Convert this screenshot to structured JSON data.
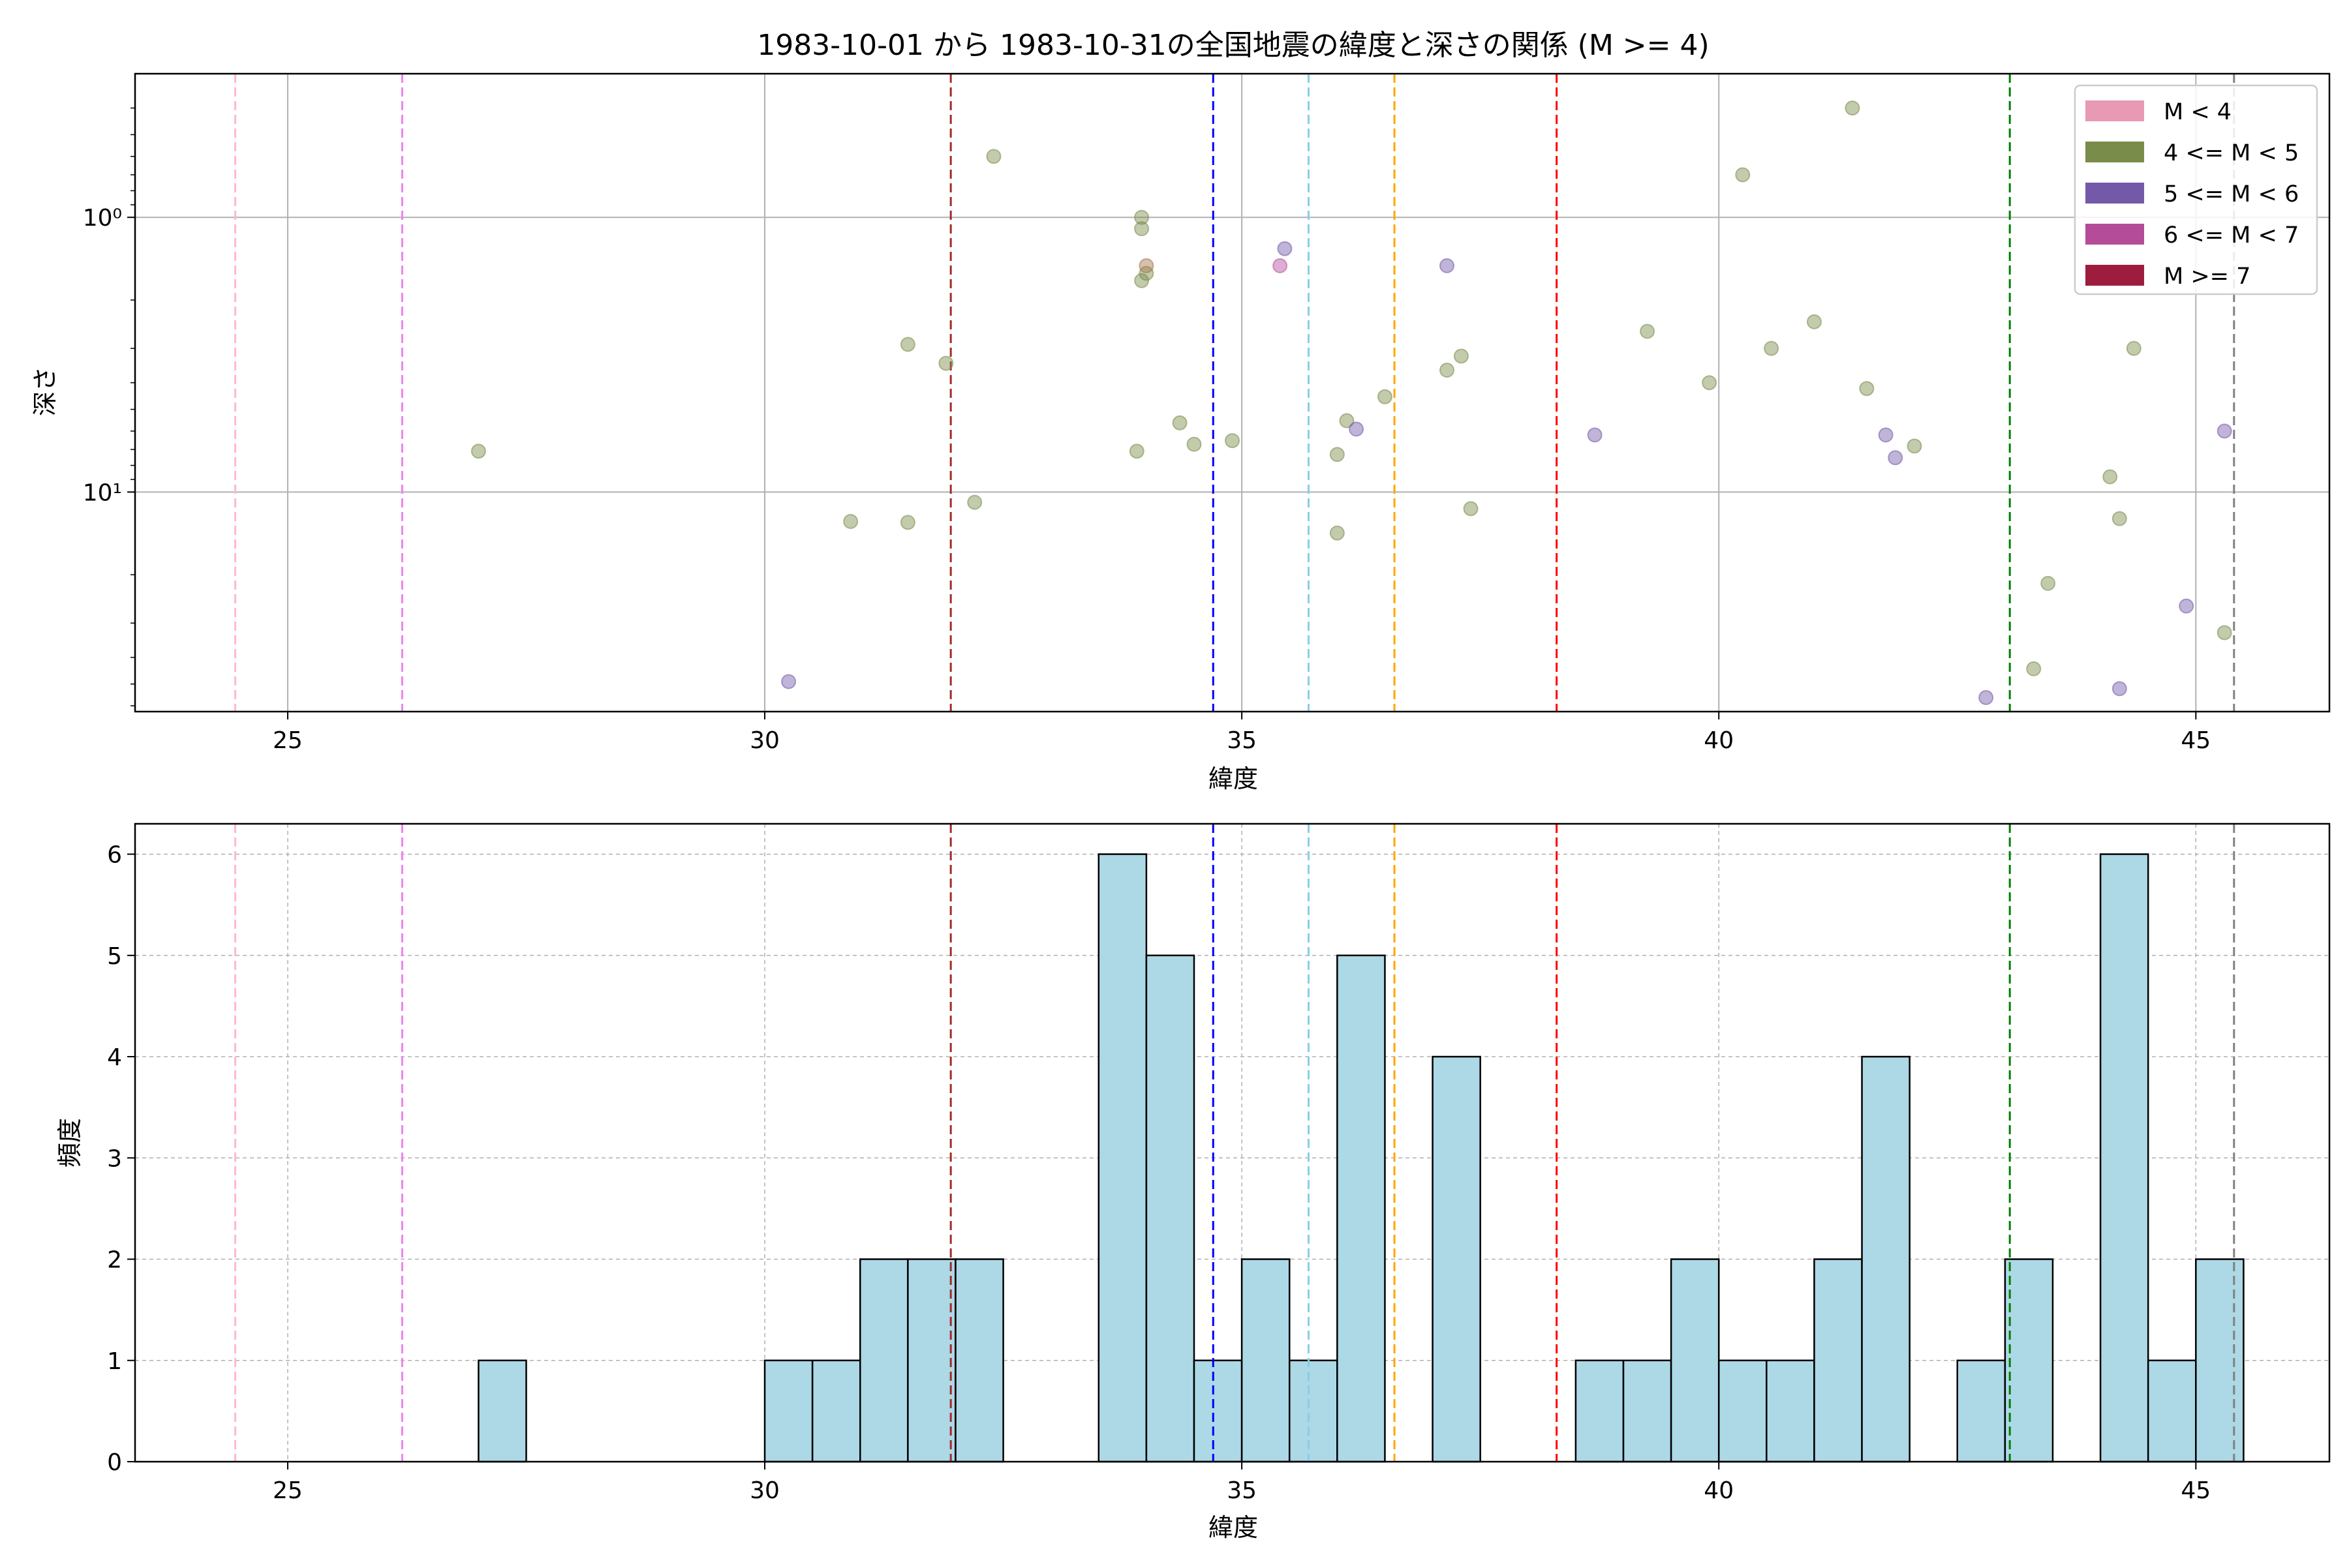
{
  "chart_data": [
    {
      "type": "scatter",
      "title": "1983-10-01 から 1983-10-31の全国地震の緯度と深さの関係 (M >= 4)",
      "xlabel": "緯度",
      "ylabel": "深さ",
      "xlim": [
        23.4,
        46.4
      ],
      "ylim": [
        63,
        0.3
      ],
      "y_scale": "log",
      "y_inverted": true,
      "grid": true,
      "xticks": [
        25,
        30,
        35,
        40,
        45
      ],
      "yticks": [
        {
          "value": 1,
          "label": "10⁰"
        },
        {
          "value": 10,
          "label": "10¹"
        }
      ],
      "legend": {
        "position": "top-right",
        "entries": [
          {
            "label": "M < 4",
            "color": "#e899b4"
          },
          {
            "label": "4 <= M < 5",
            "color": "#7a8c4a"
          },
          {
            "label": "5 <= M < 6",
            "color": "#7459a8"
          },
          {
            "label": "6 <= M < 7",
            "color": "#b44c9a"
          },
          {
            "label": "M >= 7",
            "color": "#9e1d3e"
          }
        ]
      },
      "reference_lines": [
        {
          "x": 24.45,
          "color": "#ffb6d9"
        },
        {
          "x": 26.2,
          "color": "#ee82ee"
        },
        {
          "x": 31.95,
          "color": "#a52a2a"
        },
        {
          "x": 34.7,
          "color": "#0000ff"
        },
        {
          "x": 35.7,
          "color": "#87ceeb"
        },
        {
          "x": 36.6,
          "color": "#ffa500"
        },
        {
          "x": 38.3,
          "color": "#ff0000"
        },
        {
          "x": 43.05,
          "color": "#008000"
        },
        {
          "x": 45.4,
          "color": "#808080"
        }
      ],
      "series": [
        {
          "name": "4 <= M < 5",
          "color": "#7a8c4a",
          "points": [
            {
              "x": 27.0,
              "y": 7.1
            },
            {
              "x": 30.9,
              "y": 12.8
            },
            {
              "x": 31.5,
              "y": 2.9
            },
            {
              "x": 31.5,
              "y": 12.9
            },
            {
              "x": 31.9,
              "y": 3.4
            },
            {
              "x": 32.2,
              "y": 10.9
            },
            {
              "x": 32.4,
              "y": 0.6
            },
            {
              "x": 33.9,
              "y": 7.1
            },
            {
              "x": 33.95,
              "y": 1.0
            },
            {
              "x": 33.95,
              "y": 1.1
            },
            {
              "x": 33.95,
              "y": 1.7
            },
            {
              "x": 34.0,
              "y": 1.6
            },
            {
              "x": 34.35,
              "y": 5.6
            },
            {
              "x": 34.5,
              "y": 6.7
            },
            {
              "x": 34.9,
              "y": 6.5
            },
            {
              "x": 36.0,
              "y": 14.1
            },
            {
              "x": 36.0,
              "y": 7.3
            },
            {
              "x": 36.1,
              "y": 5.5
            },
            {
              "x": 36.5,
              "y": 4.5
            },
            {
              "x": 37.15,
              "y": 3.6
            },
            {
              "x": 37.3,
              "y": 3.2
            },
            {
              "x": 37.4,
              "y": 11.5
            },
            {
              "x": 39.25,
              "y": 2.6
            },
            {
              "x": 39.9,
              "y": 4.0
            },
            {
              "x": 40.25,
              "y": 0.7
            },
            {
              "x": 40.55,
              "y": 3.0
            },
            {
              "x": 41.0,
              "y": 2.4
            },
            {
              "x": 41.4,
              "y": 0.4
            },
            {
              "x": 41.55,
              "y": 4.2
            },
            {
              "x": 42.05,
              "y": 6.8
            },
            {
              "x": 43.3,
              "y": 44.0
            },
            {
              "x": 43.45,
              "y": 21.5
            },
            {
              "x": 44.1,
              "y": 8.8
            },
            {
              "x": 44.2,
              "y": 12.5
            },
            {
              "x": 44.35,
              "y": 3.0
            },
            {
              "x": 45.3,
              "y": 32.5
            }
          ]
        },
        {
          "name": "5 <= M < 6",
          "color": "#7459a8",
          "points": [
            {
              "x": 30.25,
              "y": 49.0
            },
            {
              "x": 35.45,
              "y": 1.3
            },
            {
              "x": 36.2,
              "y": 5.9
            },
            {
              "x": 37.15,
              "y": 1.5
            },
            {
              "x": 38.7,
              "y": 6.2
            },
            {
              "x": 41.75,
              "y": 6.2
            },
            {
              "x": 41.85,
              "y": 7.5
            },
            {
              "x": 42.8,
              "y": 56.0
            },
            {
              "x": 44.2,
              "y": 52.0
            },
            {
              "x": 44.9,
              "y": 26.0
            },
            {
              "x": 45.3,
              "y": 6.0
            }
          ]
        },
        {
          "name": "6 <= M < 7",
          "color": "#b44c9a",
          "points": [
            {
              "x": 35.4,
              "y": 1.5
            }
          ]
        },
        {
          "name": "",
          "color": "#a1754a",
          "points": [
            {
              "x": 34.0,
              "y": 1.5
            }
          ]
        }
      ]
    },
    {
      "type": "bar",
      "xlabel": "緯度",
      "ylabel": "頻度",
      "xlim": [
        23.4,
        46.4
      ],
      "ylim": [
        0,
        6.3
      ],
      "grid": true,
      "xticks": [
        25,
        30,
        35,
        40,
        45
      ],
      "yticks": [
        0,
        1,
        2,
        3,
        4,
        5,
        6
      ],
      "bar_color": "#add8e6",
      "edge_color": "#000000",
      "reference_lines": [
        {
          "x": 24.45,
          "color": "#ffb6d9"
        },
        {
          "x": 26.2,
          "color": "#ee82ee"
        },
        {
          "x": 31.95,
          "color": "#a52a2a"
        },
        {
          "x": 34.7,
          "color": "#0000ff"
        },
        {
          "x": 35.7,
          "color": "#87ceeb"
        },
        {
          "x": 36.6,
          "color": "#ffa500"
        },
        {
          "x": 38.3,
          "color": "#ff0000"
        },
        {
          "x": 43.05,
          "color": "#008000"
        },
        {
          "x": 45.4,
          "color": "#808080"
        }
      ],
      "bins": [
        {
          "x0": 27.0,
          "x1": 27.5,
          "count": 1
        },
        {
          "x0": 30.0,
          "x1": 30.5,
          "count": 1
        },
        {
          "x0": 30.5,
          "x1": 31.0,
          "count": 1
        },
        {
          "x0": 31.0,
          "x1": 31.5,
          "count": 2
        },
        {
          "x0": 31.5,
          "x1": 32.0,
          "count": 2
        },
        {
          "x0": 32.0,
          "x1": 32.5,
          "count": 2
        },
        {
          "x0": 33.5,
          "x1": 34.0,
          "count": 6
        },
        {
          "x0": 34.0,
          "x1": 34.5,
          "count": 5
        },
        {
          "x0": 34.5,
          "x1": 35.0,
          "count": 1
        },
        {
          "x0": 35.0,
          "x1": 35.5,
          "count": 2
        },
        {
          "x0": 35.5,
          "x1": 36.0,
          "count": 1
        },
        {
          "x0": 36.0,
          "x1": 36.5,
          "count": 5
        },
        {
          "x0": 37.0,
          "x1": 37.5,
          "count": 4
        },
        {
          "x0": 38.5,
          "x1": 39.0,
          "count": 1
        },
        {
          "x0": 39.0,
          "x1": 39.5,
          "count": 1
        },
        {
          "x0": 39.5,
          "x1": 40.0,
          "count": 2
        },
        {
          "x0": 40.0,
          "x1": 40.5,
          "count": 1
        },
        {
          "x0": 40.5,
          "x1": 41.0,
          "count": 1
        },
        {
          "x0": 41.0,
          "x1": 41.5,
          "count": 2
        },
        {
          "x0": 41.5,
          "x1": 42.0,
          "count": 4
        },
        {
          "x0": 42.5,
          "x1": 43.0,
          "count": 1
        },
        {
          "x0": 43.0,
          "x1": 43.5,
          "count": 2
        },
        {
          "x0": 44.0,
          "x1": 44.5,
          "count": 6
        },
        {
          "x0": 44.5,
          "x1": 45.0,
          "count": 1
        },
        {
          "x0": 45.0,
          "x1": 45.5,
          "count": 2
        }
      ]
    }
  ]
}
